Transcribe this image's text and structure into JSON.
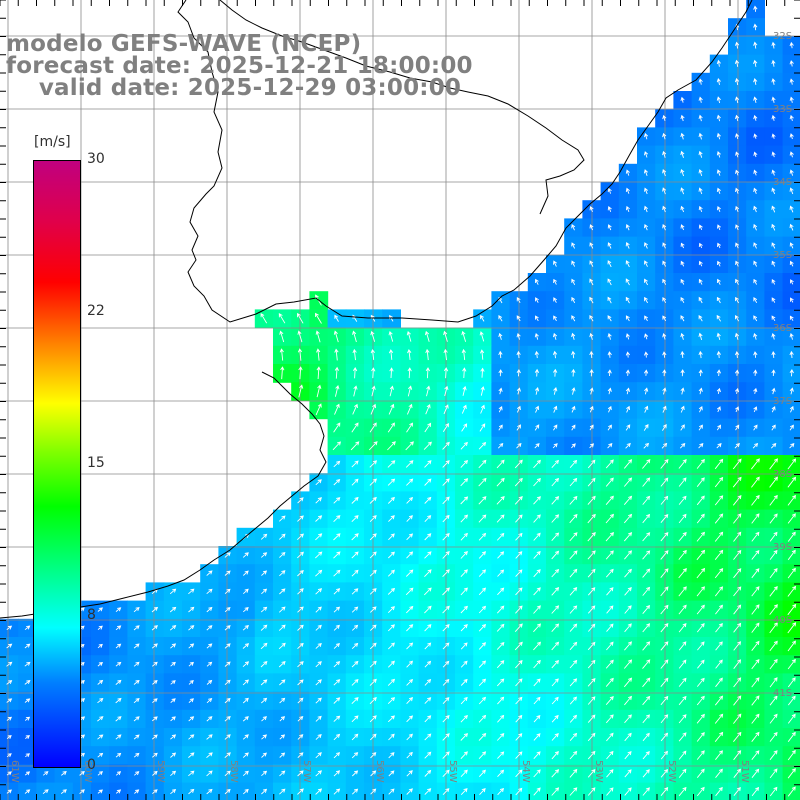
{
  "header": {
    "line1": "modelo GEFS-WAVE (NCEP)",
    "line2": "forecast date: 2025-12-21 18:00:00",
    "line3": "    valid date: 2025-12-29 03:00:00"
  },
  "colorbar": {
    "unit": "[m/s]",
    "ticks": [
      "30",
      "22",
      "15",
      "8",
      "0"
    ],
    "colors": [
      "#0000ff",
      "#0080ff",
      "#00ffff",
      "#00ff80",
      "#00ff00",
      "#80ff00",
      "#ffff00",
      "#ff8000",
      "#ff0000",
      "#c0007f"
    ]
  },
  "axes": {
    "lon_labels": [
      "61W",
      "60W",
      "59W",
      "58W",
      "57W",
      "56W",
      "55W",
      "54W",
      "53W",
      "52W",
      "51W"
    ],
    "lat_labels": [
      "32S",
      "33S",
      "34S",
      "35S",
      "36S",
      "37S",
      "38S",
      "39S",
      "40S",
      "41S"
    ]
  },
  "colors": {
    "background": "#ffffff",
    "land": "#ffffff",
    "coastline": "#000000",
    "grid": "#8a8a8a",
    "arrows": "#ffffff",
    "title": "#808080"
  }
}
